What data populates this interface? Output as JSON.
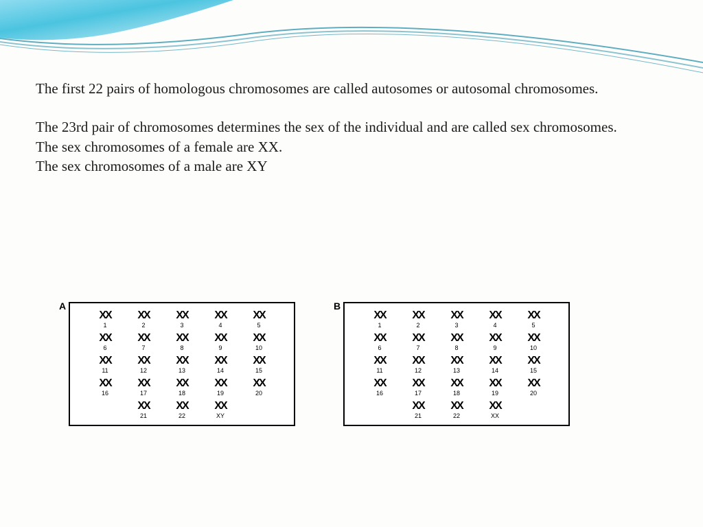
{
  "header_wave": {
    "gradient_start": "#8fdcf0",
    "gradient_mid": "#4bc4e0",
    "gradient_end": "#d4f0f7",
    "line_color": "#1a8aa8",
    "background_color": "#fdfdfb"
  },
  "text": {
    "para1": "The first 22 pairs of homologous chromosomes are called autosomes or autosomal chromosomes.",
    "para2_line1": "The 23rd pair of chromosomes determines the sex of the individual and are called sex chromosomes.",
    "para2_line2": "The sex chromosomes of a female are XX.",
    "para2_line3": "The sex chromosomes of a male are XY",
    "font_size": 21,
    "text_color": "#1a1a1a"
  },
  "karyotypes": {
    "panel_A": {
      "label": "A",
      "rows": [
        [
          "1",
          "2",
          "3",
          "4",
          "5"
        ],
        [
          "6",
          "7",
          "8",
          "9",
          "10"
        ],
        [
          "11",
          "12",
          "13",
          "14",
          "15"
        ],
        [
          "16",
          "17",
          "18",
          "19",
          "20"
        ],
        [
          "21",
          "22",
          "XY"
        ]
      ],
      "glyph": "XX"
    },
    "panel_B": {
      "label": "B",
      "rows": [
        [
          "1",
          "2",
          "3",
          "4",
          "5"
        ],
        [
          "6",
          "7",
          "8",
          "9",
          "10"
        ],
        [
          "11",
          "12",
          "13",
          "14",
          "15"
        ],
        [
          "16",
          "17",
          "18",
          "19",
          "20"
        ],
        [
          "21",
          "22",
          "XX"
        ]
      ],
      "glyph": "XX"
    },
    "border_color": "#000000",
    "bg_color": "#ffffff"
  }
}
